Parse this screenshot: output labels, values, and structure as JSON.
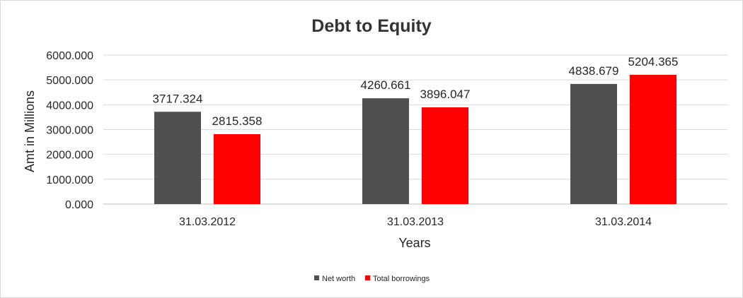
{
  "chart_data": {
    "type": "bar",
    "title": "Debt to Equity",
    "xlabel": "Years",
    "ylabel": "Amt in Millions",
    "categories": [
      "31.03.2012",
      "31.03.2013",
      "31.03.2014"
    ],
    "series": [
      {
        "name": "Net worth",
        "values": [
          3717.324,
          4260.661,
          4838.679
        ],
        "color": "#505050"
      },
      {
        "name": "Total borrowings",
        "values": [
          2815.358,
          3896.047,
          5204.365
        ],
        "color": "#ff0000"
      }
    ],
    "data_labels": [
      [
        "3717.324",
        "4260.661",
        "4838.679"
      ],
      [
        "2815.358",
        "3896.047",
        "5204.365"
      ]
    ],
    "ylim": [
      0,
      6000
    ],
    "yticks": [
      "0.000",
      "1000.000",
      "2000.000",
      "3000.000",
      "4000.000",
      "5000.000",
      "6000.000"
    ],
    "grid": true,
    "legend_position": "bottom"
  }
}
